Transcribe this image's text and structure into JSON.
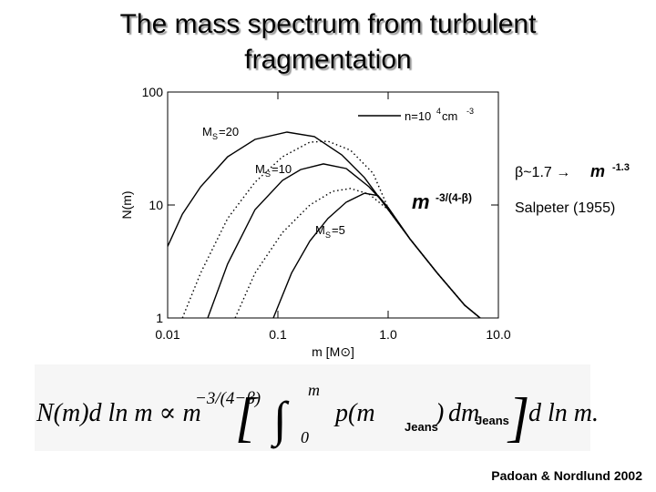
{
  "slide": {
    "title_lines": [
      "The mass spectrum from turbulent",
      "fragmentation"
    ],
    "note_beta": "β~1.7 →",
    "note_m": "m",
    "note_exp": "-1.3",
    "note_ref": "Salpeter (1955)",
    "citation": "Padoan & Nordlund 2002",
    "equation": {
      "lhs": "N(m)d ln m ∝ m",
      "lhs_exp": "−3/(4−β)",
      "open": "[",
      "integral": "∫",
      "upper": "m",
      "lower": "0",
      "integrand": "p(m",
      "close_paren": ")",
      "dm": "dm",
      "sub1": "Jeans",
      "sub2": "Jeans",
      "close": "]",
      "rhs": "d ln m."
    }
  },
  "chart_data": {
    "type": "line",
    "xlog": true,
    "ylog": true,
    "xlabel": "m [M⊙]",
    "ylabel": "N(m)",
    "xlim": [
      0.01,
      10
    ],
    "ylim": [
      1,
      100
    ],
    "xticks": [
      0.01,
      0.1,
      {
        "value": 1,
        "label": "1.0"
      },
      {
        "value": 10,
        "label": "10.0"
      }
    ],
    "yticks": [
      1,
      10,
      100
    ],
    "legend": {
      "main": "n=10",
      "exp": "4",
      "unit": " cm",
      "unit_exp": "-3"
    },
    "annotation": {
      "base": "m",
      "exp": "-3/(4-β)"
    },
    "series": [
      {
        "label_main": "M",
        "label_sub": "S",
        "label_rest": "=20",
        "dash": "solid",
        "color": "#000000",
        "x": [
          0.01,
          0.0136,
          0.0199,
          0.035,
          0.062,
          0.121,
          0.214,
          0.379,
          0.61,
          1.0,
          1.58,
          2.79,
          4.94,
          6.84
        ],
        "values": [
          4.3,
          8.3,
          14.5,
          26.7,
          38.1,
          44.2,
          40.3,
          27.8,
          17.5,
          9.1,
          5.0,
          2.5,
          1.3,
          1.0
        ]
      },
      {
        "dash": "dotted",
        "color": "#000000",
        "x": [
          0.0136,
          0.0199,
          0.035,
          0.062,
          0.11,
          0.195,
          0.284,
          0.456,
          0.73,
          1.0,
          1.58,
          2.79,
          4.94,
          6.84
        ],
        "values": [
          1.0,
          2.5,
          7.6,
          15.9,
          26.7,
          36.0,
          36.7,
          30.5,
          19.1,
          9.4,
          5.0,
          2.5,
          1.3,
          1.0
        ]
      },
      {
        "label_main": "M",
        "label_sub": "S",
        "label_rest": "=10",
        "dash": "solid",
        "color": "#000000",
        "x": [
          0.0231,
          0.035,
          0.062,
          0.11,
          0.161,
          0.259,
          0.417,
          0.67,
          1.0,
          1.58,
          2.79,
          4.94,
          6.84
        ],
        "values": [
          1.0,
          3.0,
          9.1,
          16.5,
          20.6,
          23.1,
          21.0,
          14.5,
          9.5,
          5.0,
          2.5,
          1.3,
          1.0
        ]
      },
      {
        "dash": "dotted",
        "color": "#000000",
        "x": [
          0.041,
          0.062,
          0.11,
          0.195,
          0.313,
          0.456,
          0.67,
          1.0,
          1.58,
          2.79,
          4.94,
          6.84
        ],
        "values": [
          1.0,
          2.5,
          5.7,
          10.0,
          13.2,
          14.0,
          12.5,
          9.1,
          5.0,
          2.5,
          1.3,
          1.0
        ]
      },
      {
        "label_main": "M",
        "label_sub": "S",
        "label_rest": "=5",
        "dash": "solid",
        "color": "#000000",
        "x": [
          0.091,
          0.133,
          0.195,
          0.284,
          0.417,
          0.61,
          0.81,
          1.0,
          1.58,
          2.79,
          4.94,
          6.84
        ],
        "values": [
          1.0,
          2.5,
          4.8,
          7.6,
          10.6,
          12.7,
          12.1,
          9.5,
          5.0,
          2.5,
          1.3,
          1.0
        ]
      }
    ]
  }
}
